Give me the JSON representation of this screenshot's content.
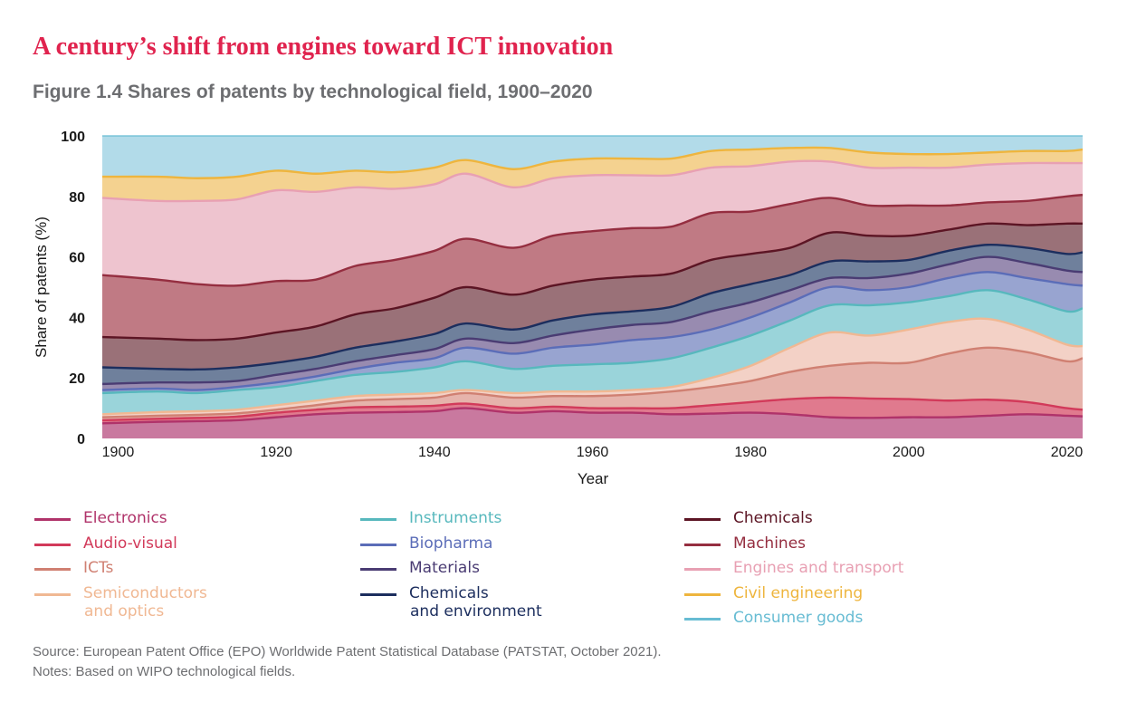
{
  "headline": "A century’s shift from engines toward ICT innovation",
  "figure_title": "Figure 1.4 Shares of patents by technological field, 1900–2020",
  "source": "Source: European Patent Office (EPO) Worldwide Patent Statistical Database (PATSTAT, October 2021).",
  "notes": "Notes: Based on WIPO technological fields.",
  "chart_data": {
    "type": "area",
    "stacked": true,
    "xlabel": "Year",
    "ylabel": "Share of patents (%)",
    "xlim": [
      1898,
      2022
    ],
    "ylim": [
      0,
      100
    ],
    "x_ticks": [
      "1900",
      "1920",
      "1940",
      "1960",
      "1980",
      "2000",
      "2020"
    ],
    "y_ticks": [
      "0",
      "20",
      "40",
      "60",
      "80",
      "100"
    ],
    "grid": false,
    "legend_position": "bottom",
    "x": [
      1898,
      1905,
      1910,
      1915,
      1920,
      1925,
      1930,
      1935,
      1940,
      1944,
      1950,
      1955,
      1960,
      1965,
      1970,
      1975,
      1980,
      1985,
      1990,
      1995,
      2000,
      2005,
      2010,
      2015,
      2020,
      2022
    ],
    "cumulative_boundaries": [
      {
        "name": "Electronics",
        "color": "#b0336a",
        "fill": "#c9799f",
        "values": [
          5.0,
          5.5,
          5.7,
          6.0,
          7.0,
          8.0,
          8.5,
          8.7,
          9.0,
          10.0,
          8.5,
          9.0,
          8.5,
          8.5,
          8.0,
          8.2,
          8.5,
          8.0,
          7.0,
          6.8,
          7.0,
          7.0,
          7.5,
          8.0,
          7.5,
          7.3
        ]
      },
      {
        "name": "Audio-visual",
        "color": "#d23a5a",
        "fill": "#e07a8e",
        "values": [
          6.0,
          6.5,
          6.8,
          7.2,
          8.5,
          9.5,
          10.3,
          10.5,
          10.8,
          11.5,
          10.0,
          10.5,
          10.0,
          10.0,
          10.0,
          11.0,
          12.0,
          13.0,
          13.5,
          13.2,
          13.0,
          12.5,
          12.8,
          12.0,
          10.0,
          9.5
        ]
      },
      {
        "name": "ICTs",
        "color": "#d08072",
        "fill": "#e6b3ab",
        "values": [
          7.0,
          7.5,
          7.8,
          8.3,
          9.5,
          11.0,
          12.5,
          13.0,
          13.5,
          15.0,
          13.5,
          14.0,
          14.0,
          14.5,
          15.5,
          17.0,
          19.0,
          22.0,
          24.0,
          25.0,
          25.0,
          28.0,
          30.0,
          28.5,
          25.5,
          26.5
        ]
      },
      {
        "name": "Semiconductors and optics",
        "color": "#f0b893",
        "fill": "#f3d1c6",
        "values": [
          8.0,
          8.7,
          9.0,
          9.5,
          11.0,
          12.5,
          14.0,
          14.5,
          15.0,
          16.0,
          15.0,
          15.5,
          15.5,
          16.0,
          17.0,
          20.0,
          24.0,
          30.0,
          35.0,
          34.0,
          36.0,
          38.5,
          39.5,
          36.0,
          31.0,
          30.5
        ]
      },
      {
        "name": "Instruments",
        "color": "#57b8bd",
        "fill": "#9ad4da",
        "values": [
          15.0,
          15.5,
          15.0,
          16.0,
          17.0,
          19.0,
          21.0,
          22.0,
          23.5,
          25.5,
          23.0,
          24.0,
          24.5,
          25.0,
          26.5,
          30.0,
          34.0,
          39.0,
          44.0,
          44.0,
          45.0,
          47.0,
          49.0,
          46.0,
          42.0,
          43.0
        ]
      },
      {
        "name": "Biopharma",
        "color": "#5b6db8",
        "fill": "#98a4d0",
        "values": [
          16.0,
          16.5,
          16.0,
          17.0,
          18.5,
          20.5,
          23.0,
          25.0,
          26.5,
          30.0,
          28.0,
          30.0,
          31.0,
          32.5,
          33.5,
          36.0,
          40.0,
          45.0,
          50.0,
          49.0,
          50.0,
          53.0,
          55.0,
          53.0,
          51.0,
          50.5
        ]
      },
      {
        "name": "Materials",
        "color": "#4a3c73",
        "fill": "#988bb0",
        "values": [
          18.0,
          18.5,
          18.5,
          19.0,
          21.0,
          23.0,
          25.5,
          27.5,
          29.5,
          33.0,
          31.5,
          34.0,
          36.0,
          37.5,
          38.5,
          42.0,
          45.0,
          49.0,
          53.0,
          53.0,
          54.5,
          57.5,
          60.0,
          58.0,
          55.5,
          55.0
        ]
      },
      {
        "name": "Chemicals and environment",
        "color": "#1c2e5e",
        "fill": "#6f809c",
        "values": [
          23.5,
          23.0,
          22.8,
          23.5,
          25.0,
          27.0,
          30.0,
          32.0,
          34.5,
          38.0,
          36.0,
          39.0,
          41.0,
          42.0,
          43.5,
          48.0,
          51.0,
          54.0,
          58.5,
          58.5,
          59.0,
          62.0,
          64.0,
          63.0,
          61.0,
          61.5
        ]
      },
      {
        "name": "Chemicals",
        "color": "#5c1524",
        "fill": "#9a7178",
        "values": [
          33.5,
          33.0,
          32.5,
          33.0,
          35.0,
          37.0,
          41.0,
          43.0,
          46.5,
          50.0,
          47.5,
          50.5,
          52.5,
          53.5,
          54.5,
          59.0,
          61.0,
          63.0,
          68.0,
          67.0,
          67.0,
          69.0,
          71.0,
          70.5,
          71.0,
          71.0
        ]
      },
      {
        "name": "Machines",
        "color": "#952e40",
        "fill": "#c07a84",
        "values": [
          54.0,
          52.5,
          51.0,
          50.5,
          52.0,
          52.5,
          57.0,
          59.0,
          62.0,
          66.0,
          63.0,
          67.0,
          68.5,
          69.5,
          70.0,
          74.5,
          75.0,
          77.5,
          79.5,
          77.0,
          77.0,
          77.0,
          78.0,
          78.5,
          80.0,
          80.5
        ]
      },
      {
        "name": "Engines and transport",
        "color": "#e8a0b3",
        "fill": "#eec4cf",
        "values": [
          79.5,
          78.5,
          78.5,
          79.0,
          82.0,
          81.5,
          83.0,
          82.5,
          84.0,
          87.5,
          83.0,
          86.0,
          87.0,
          87.0,
          87.0,
          89.5,
          90.0,
          91.5,
          91.5,
          89.5,
          89.5,
          89.5,
          90.5,
          91.0,
          91.0,
          91.0
        ]
      },
      {
        "name": "Civil engineering",
        "color": "#eeb53e",
        "fill": "#f4d290",
        "values": [
          86.5,
          86.5,
          86.0,
          86.5,
          88.5,
          87.5,
          88.5,
          88.0,
          89.5,
          92.0,
          89.0,
          91.5,
          92.5,
          92.5,
          92.5,
          95.0,
          95.5,
          96.0,
          96.0,
          94.5,
          94.0,
          94.0,
          94.5,
          95.0,
          95.0,
          95.5
        ]
      },
      {
        "name": "Consumer goods",
        "color": "#67bcd3",
        "fill": "#b2dbe9",
        "values": [
          100,
          100,
          100,
          100,
          100,
          100,
          100,
          100,
          100,
          100,
          100,
          100,
          100,
          100,
          100,
          100,
          100,
          100,
          100,
          100,
          100,
          100,
          100,
          100,
          100,
          100
        ]
      }
    ]
  },
  "legend": {
    "columns": [
      [
        {
          "lines": [
            "Electronics"
          ],
          "color": "#b0336a"
        },
        {
          "lines": [
            "Audio-visual"
          ],
          "color": "#d23a5a"
        },
        {
          "lines": [
            "ICTs"
          ],
          "color": "#d08072"
        },
        {
          "lines": [
            "Semiconductors",
            "and optics"
          ],
          "color": "#f0b893"
        }
      ],
      [
        {
          "lines": [
            "Instruments"
          ],
          "color": "#57b8bd"
        },
        {
          "lines": [
            "Biopharma"
          ],
          "color": "#5b6db8"
        },
        {
          "lines": [
            "Materials"
          ],
          "color": "#4a3c73"
        },
        {
          "lines": [
            "Chemicals",
            "and environment"
          ],
          "color": "#1c2e5e"
        }
      ],
      [
        {
          "lines": [
            "Chemicals"
          ],
          "color": "#5c1524"
        },
        {
          "lines": [
            "Machines"
          ],
          "color": "#952e40"
        },
        {
          "lines": [
            "Engines and transport"
          ],
          "color": "#e8a0b3"
        },
        {
          "lines": [
            "Civil engineering"
          ],
          "color": "#eeb53e"
        },
        {
          "lines": [
            "Consumer goods"
          ],
          "color": "#67bcd3"
        }
      ]
    ]
  }
}
